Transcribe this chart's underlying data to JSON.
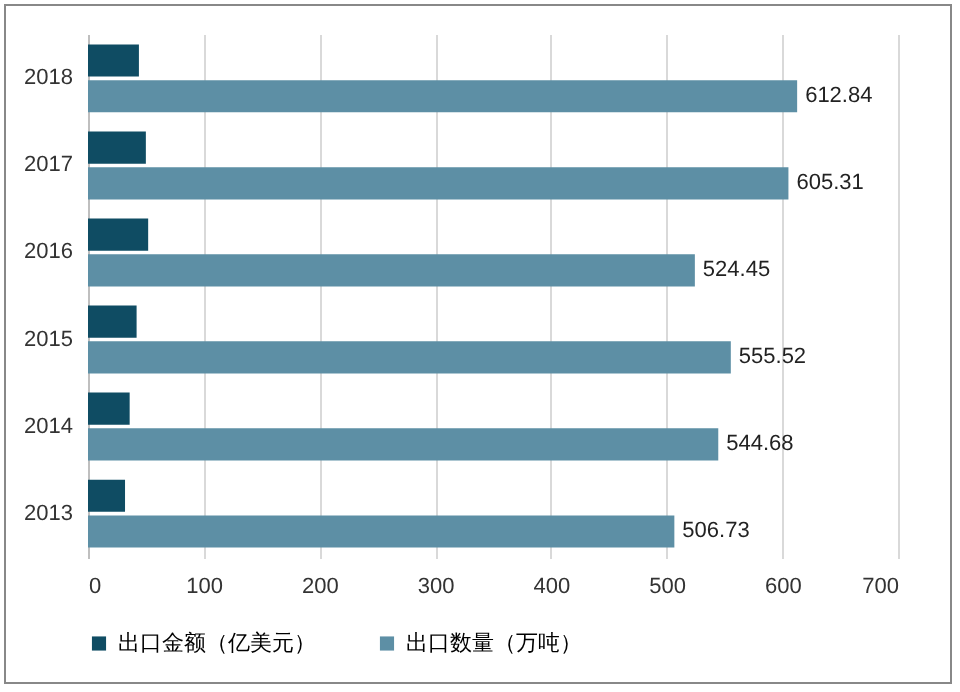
{
  "chart_data": {
    "type": "bar",
    "orientation": "horizontal",
    "categories": [
      "2018",
      "2017",
      "2016",
      "2015",
      "2014",
      "2013"
    ],
    "series": [
      {
        "name": "出口金额（亿美元）",
        "color": "#0f4c63",
        "values": [
          44,
          50,
          52,
          42,
          36,
          32
        ]
      },
      {
        "name": "出口数量（万吨）",
        "color": "#5d8fa5",
        "values": [
          612.84,
          605.31,
          524.45,
          555.52,
          544.68,
          506.73
        ],
        "value_labels": [
          "612.84",
          "605.31",
          "524.45",
          "555.52",
          "544.68",
          "506.73"
        ]
      }
    ],
    "xlim": [
      0,
      700
    ],
    "xticks": [
      0,
      100,
      200,
      300,
      400,
      500,
      600,
      700
    ],
    "grid": "x",
    "legend": "bottom"
  }
}
